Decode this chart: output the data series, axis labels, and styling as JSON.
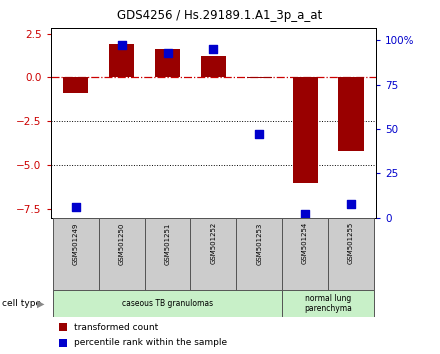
{
  "title": "GDS4256 / Hs.29189.1.A1_3p_a_at",
  "samples": [
    "GSM501249",
    "GSM501250",
    "GSM501251",
    "GSM501252",
    "GSM501253",
    "GSM501254",
    "GSM501255"
  ],
  "transformed_counts": [
    -0.9,
    1.9,
    1.6,
    1.2,
    -0.05,
    -6.0,
    -4.2
  ],
  "percentile_ranks": [
    6,
    97,
    93,
    95,
    47,
    2,
    8
  ],
  "cell_groups": [
    {
      "label": "caseous TB granulomas",
      "start": 0,
      "end": 5,
      "color": "#c8f0c8"
    },
    {
      "label": "normal lung\nparenchyma",
      "start": 5,
      "end": 7,
      "color": "#c8f0c8"
    }
  ],
  "ylim_left": [
    -8.0,
    2.8
  ],
  "yticks_left": [
    2.5,
    0.0,
    -2.5,
    -5.0,
    -7.5
  ],
  "ylim_right": [
    0,
    106.67
  ],
  "yticks_right": [
    0,
    25,
    50,
    75,
    100
  ],
  "yticklabels_right": [
    "0",
    "25",
    "50",
    "75",
    "100%"
  ],
  "bar_color": "#990000",
  "dot_color": "#0000cc",
  "hline_y": 0,
  "dotted_lines": [
    -2.5,
    -5.0
  ],
  "legend_items": [
    {
      "label": "transformed count",
      "color": "#990000"
    },
    {
      "label": "percentile rank within the sample",
      "color": "#0000cc"
    }
  ],
  "bar_width": 0.55,
  "dot_size": 28,
  "left_tick_color": "#cc0000",
  "right_tick_color": "#0000cc"
}
